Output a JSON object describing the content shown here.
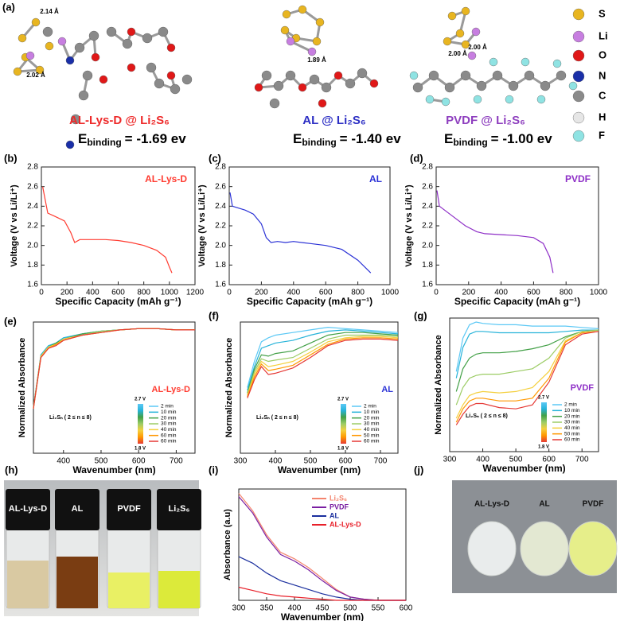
{
  "panel_a": {
    "label": "(a)",
    "structures": [
      {
        "name": "AL-Lys-D @ Li₂S₆",
        "color": "#ee2a2a",
        "energy_symbol": "E",
        "energy_subscript": "binding",
        "energy": "= -1.69 ev",
        "distances": [
          "2.14 Å",
          "2.02 Å"
        ]
      },
      {
        "name": "AL @ Li₂S₆",
        "color": "#2d2fc4",
        "energy_symbol": "E",
        "energy_subscript": "binding",
        "energy": "= -1.40 ev",
        "distances": [
          "1.89 Å"
        ]
      },
      {
        "name": "PVDF @ Li₂S₆",
        "color": "#8e3fbf",
        "energy_symbol": "E",
        "energy_subscript": "binding",
        "energy": "= -1.00 ev",
        "distances": [
          "2.00 Å",
          "2.00 Å"
        ]
      }
    ],
    "atom_legend": [
      {
        "symbol": "S",
        "color": "#e8b520"
      },
      {
        "symbol": "Li",
        "color": "#c77ee0"
      },
      {
        "symbol": "O",
        "color": "#e01818"
      },
      {
        "symbol": "N",
        "color": "#1a2fa8"
      },
      {
        "symbol": "C",
        "color": "#8a8a8a"
      },
      {
        "symbol": "H",
        "color": "#e6e6e6"
      },
      {
        "symbol": "F",
        "color": "#8fe3e3"
      }
    ]
  },
  "chart_data": [
    {
      "type": "line",
      "panel": "(b)",
      "xlabel": "Specific Capacity (mAh g⁻¹)",
      "ylabel": "Voltage (V vs Li/Li⁺)",
      "x": [
        10,
        50,
        100,
        180,
        230,
        260,
        300,
        400,
        500,
        600,
        700,
        800,
        900,
        970,
        1000,
        1020
      ],
      "series": [
        {
          "name": "AL-Lys-D",
          "color": "#ff3b30",
          "values": [
            2.6,
            2.33,
            2.3,
            2.25,
            2.13,
            2.03,
            2.06,
            2.06,
            2.06,
            2.05,
            2.03,
            2.0,
            1.95,
            1.88,
            1.78,
            1.72
          ]
        }
      ],
      "xlim": [
        0,
        1200
      ],
      "xticks": [
        0,
        200,
        400,
        600,
        800,
        1000,
        1200
      ],
      "ylim": [
        1.6,
        2.8
      ],
      "yticks": [
        1.6,
        1.8,
        {
          "value": 2,
          "label": "2.0"
        },
        2.2,
        2.4,
        2.6,
        2.8
      ]
    },
    {
      "type": "line",
      "panel": "(c)",
      "xlabel": "Specific Capacity (mAh g⁻¹)",
      "ylabel": "Voltage (V vs Li/Li⁺)",
      "x": [
        5,
        20,
        100,
        150,
        200,
        230,
        260,
        300,
        350,
        400,
        500,
        600,
        700,
        800,
        880
      ],
      "series": [
        {
          "name": "AL",
          "color": "#2b32d6",
          "values": [
            2.54,
            2.4,
            2.36,
            2.32,
            2.22,
            2.08,
            2.03,
            2.04,
            2.03,
            2.04,
            2.02,
            2.0,
            1.96,
            1.85,
            1.72
          ]
        }
      ],
      "xlim": [
        0,
        1000
      ],
      "xticks": [
        0,
        200,
        400,
        600,
        800,
        1000
      ],
      "ylim": [
        1.6,
        2.8
      ],
      "yticks": [
        1.6,
        1.8,
        {
          "value": 2,
          "label": "2.0"
        },
        2.2,
        2.4,
        2.6,
        2.8
      ]
    },
    {
      "type": "line",
      "panel": "(d)",
      "xlabel": "Specific Capacity (mAh g⁻¹)",
      "ylabel": "Voltage (V vs Li/Li⁺)",
      "x": [
        5,
        20,
        100,
        180,
        250,
        300,
        400,
        500,
        600,
        660,
        700,
        720
      ],
      "series": [
        {
          "name": "PVDF",
          "color": "#8e2fc7",
          "values": [
            2.56,
            2.4,
            2.3,
            2.2,
            2.14,
            2.12,
            2.11,
            2.1,
            2.08,
            2.02,
            1.88,
            1.72
          ]
        }
      ],
      "xlim": [
        0,
        1000
      ],
      "xticks": [
        0,
        200,
        400,
        600,
        800,
        1000
      ],
      "ylim": [
        1.6,
        2.8
      ],
      "yticks": [
        1.6,
        1.8,
        {
          "value": 2,
          "label": "2.0"
        },
        2.2,
        2.4,
        2.6,
        2.8
      ]
    },
    {
      "type": "line",
      "panel": "(e)",
      "title": "AL-Lys-D",
      "title_color": "#ff3b30",
      "xlabel": "Wavenumber (nm)",
      "ylabel": "Normalized Absorbance",
      "annotation": "Li₂Sₙ ( 2 ≤ n ≤ 8)",
      "colorbar_top": "2.7 V",
      "colorbar_bottom": "1.8 V",
      "x": [
        320,
        340,
        360,
        380,
        400,
        450,
        500,
        550,
        600,
        650,
        700,
        750
      ],
      "series": [
        {
          "name": "2 min",
          "color": "#5bc8f5",
          "values": [
            0.35,
            0.75,
            0.82,
            0.84,
            0.88,
            0.91,
            0.93,
            0.94,
            0.95,
            0.95,
            0.94,
            0.94
          ]
        },
        {
          "name": "10 min",
          "color": "#26b3d9",
          "values": [
            0.35,
            0.75,
            0.82,
            0.84,
            0.88,
            0.91,
            0.93,
            0.94,
            0.95,
            0.95,
            0.94,
            0.94
          ]
        },
        {
          "name": "20 min",
          "color": "#43a047",
          "values": [
            0.35,
            0.74,
            0.81,
            0.84,
            0.87,
            0.91,
            0.93,
            0.94,
            0.95,
            0.95,
            0.94,
            0.94
          ]
        },
        {
          "name": "30 min",
          "color": "#9ccc65",
          "values": [
            0.35,
            0.74,
            0.81,
            0.83,
            0.87,
            0.9,
            0.93,
            0.94,
            0.95,
            0.95,
            0.94,
            0.94
          ]
        },
        {
          "name": "40 min",
          "color": "#f4d03f",
          "values": [
            0.34,
            0.74,
            0.81,
            0.83,
            0.87,
            0.9,
            0.92,
            0.94,
            0.95,
            0.95,
            0.94,
            0.94
          ]
        },
        {
          "name": "60 min",
          "color": "#ff9800",
          "values": [
            0.34,
            0.73,
            0.8,
            0.83,
            0.86,
            0.9,
            0.92,
            0.94,
            0.95,
            0.95,
            0.94,
            0.94
          ]
        },
        {
          "name": "60 min",
          "color": "#e53935",
          "values": [
            0.34,
            0.73,
            0.8,
            0.82,
            0.86,
            0.9,
            0.92,
            0.94,
            0.95,
            0.95,
            0.94,
            0.94
          ]
        }
      ],
      "xlim": [
        320,
        750
      ],
      "xticks": [
        400,
        500,
        600,
        700
      ],
      "ylim": [
        0,
        1
      ]
    },
    {
      "type": "line",
      "panel": "(f)",
      "title": "AL",
      "title_color": "#2b32d6",
      "xlabel": "Wavenumber (nm)",
      "ylabel": "Normalized Absorbance",
      "annotation": "Li₂Sₙ ( 2 ≤ n ≤ 8)",
      "colorbar_top": "2.7 V",
      "colorbar_bottom": "1.8 V",
      "x": [
        320,
        340,
        360,
        380,
        400,
        450,
        500,
        550,
        600,
        650,
        700,
        750
      ],
      "series": [
        {
          "name": "2 min",
          "color": "#5bc8f5",
          "values": [
            0.5,
            0.7,
            0.85,
            0.88,
            0.9,
            0.92,
            0.94,
            0.96,
            0.95,
            0.94,
            0.93,
            0.92
          ]
        },
        {
          "name": "10 min",
          "color": "#26b3d9",
          "values": [
            0.48,
            0.66,
            0.8,
            0.82,
            0.84,
            0.86,
            0.9,
            0.93,
            0.94,
            0.93,
            0.92,
            0.91
          ]
        },
        {
          "name": "20 min",
          "color": "#43a047",
          "values": [
            0.46,
            0.64,
            0.75,
            0.74,
            0.76,
            0.78,
            0.84,
            0.9,
            0.92,
            0.92,
            0.91,
            0.9
          ]
        },
        {
          "name": "30 min",
          "color": "#9ccc65",
          "values": [
            0.45,
            0.62,
            0.72,
            0.7,
            0.71,
            0.73,
            0.8,
            0.87,
            0.9,
            0.9,
            0.9,
            0.89
          ]
        },
        {
          "name": "40 min",
          "color": "#f4d03f",
          "values": [
            0.44,
            0.6,
            0.7,
            0.66,
            0.67,
            0.7,
            0.77,
            0.85,
            0.88,
            0.89,
            0.89,
            0.88
          ]
        },
        {
          "name": "50 min",
          "color": "#ff9800",
          "values": [
            0.43,
            0.58,
            0.68,
            0.63,
            0.64,
            0.67,
            0.75,
            0.83,
            0.87,
            0.88,
            0.88,
            0.87
          ]
        },
        {
          "name": "60 min",
          "color": "#e53935",
          "values": [
            0.42,
            0.56,
            0.66,
            0.6,
            0.61,
            0.65,
            0.73,
            0.82,
            0.86,
            0.87,
            0.87,
            0.86
          ]
        }
      ],
      "xlim": [
        300,
        750
      ],
      "xticks": [
        300,
        400,
        500,
        600,
        700
      ],
      "ylim": [
        0,
        1
      ]
    },
    {
      "type": "line",
      "panel": "(g)",
      "title": "PVDF",
      "title_color": "#8e2fc7",
      "xlabel": "Wavenumber (nm)",
      "ylabel": "Normalized Absorbance",
      "annotation": "Li₂Sₙ ( 2 ≤ n ≤ 8)",
      "colorbar_top": "2.7 V",
      "colorbar_bottom": "1.8 V",
      "x": [
        320,
        340,
        360,
        380,
        400,
        450,
        500,
        550,
        600,
        650,
        700,
        750
      ],
      "series": [
        {
          "name": "2 min",
          "color": "#5bc8f5",
          "values": [
            0.6,
            0.85,
            0.95,
            0.97,
            0.96,
            0.95,
            0.95,
            0.94,
            0.94,
            0.94,
            0.93,
            0.92
          ]
        },
        {
          "name": "10 min",
          "color": "#26b3d9",
          "values": [
            0.55,
            0.78,
            0.88,
            0.9,
            0.9,
            0.89,
            0.89,
            0.89,
            0.89,
            0.9,
            0.91,
            0.91
          ]
        },
        {
          "name": "20 min",
          "color": "#43a047",
          "values": [
            0.45,
            0.62,
            0.7,
            0.73,
            0.74,
            0.74,
            0.75,
            0.77,
            0.8,
            0.86,
            0.9,
            0.91
          ]
        },
        {
          "name": "30 min",
          "color": "#9ccc65",
          "values": [
            0.35,
            0.48,
            0.55,
            0.57,
            0.58,
            0.58,
            0.6,
            0.62,
            0.7,
            0.85,
            0.9,
            0.91
          ]
        },
        {
          "name": "40 min",
          "color": "#f4d03f",
          "values": [
            0.25,
            0.35,
            0.42,
            0.44,
            0.45,
            0.44,
            0.45,
            0.48,
            0.6,
            0.83,
            0.89,
            0.9
          ]
        },
        {
          "name": "50 min",
          "color": "#ff9800",
          "values": [
            0.22,
            0.32,
            0.38,
            0.4,
            0.4,
            0.38,
            0.38,
            0.4,
            0.55,
            0.82,
            0.89,
            0.9
          ]
        },
        {
          "name": "60 min",
          "color": "#e53935",
          "values": [
            0.2,
            0.28,
            0.34,
            0.36,
            0.36,
            0.33,
            0.32,
            0.35,
            0.52,
            0.8,
            0.88,
            0.9
          ]
        }
      ],
      "xlim": [
        300,
        750
      ],
      "xticks": [
        300,
        400,
        500,
        600,
        700
      ],
      "ylim": [
        0,
        1
      ]
    },
    {
      "type": "line",
      "panel": "(i)",
      "xlabel": "Wavenumber (nm)",
      "ylabel": "Absorbance (a.u)",
      "x": [
        300,
        325,
        350,
        375,
        400,
        425,
        450,
        475,
        500,
        525,
        550,
        600
      ],
      "series": [
        {
          "name": "Li₂S₆",
          "color": "#f4846e",
          "values": [
            0.98,
            0.82,
            0.6,
            0.44,
            0.38,
            0.3,
            0.2,
            0.1,
            0.03,
            0.01,
            0,
            0
          ]
        },
        {
          "name": "PVDF",
          "color": "#7a1fa2",
          "values": [
            0.95,
            0.8,
            0.58,
            0.42,
            0.36,
            0.28,
            0.18,
            0.09,
            0.03,
            0.01,
            0,
            0
          ]
        },
        {
          "name": "AL",
          "color": "#1b2f9e",
          "values": [
            0.4,
            0.34,
            0.25,
            0.18,
            0.14,
            0.1,
            0.06,
            0.03,
            0.01,
            0,
            0,
            0
          ]
        },
        {
          "name": "AL-Lys-D",
          "color": "#e8202a",
          "values": [
            0.12,
            0.09,
            0.06,
            0.04,
            0.03,
            0.02,
            0.01,
            0,
            0,
            0,
            0,
            0
          ]
        }
      ],
      "xlim": [
        300,
        600
      ],
      "xticks": [
        300,
        350,
        400,
        450,
        500,
        550,
        600
      ],
      "ylim": [
        0,
        1.02
      ]
    }
  ],
  "panel_h": {
    "label": "(h)",
    "vials": [
      "AL-Lys-D",
      "AL",
      "PVDF",
      "Li₂S₆"
    ]
  },
  "panel_j": {
    "label": "(j)",
    "electrodes": [
      "AL-Lys-D",
      "AL",
      "PVDF"
    ]
  }
}
